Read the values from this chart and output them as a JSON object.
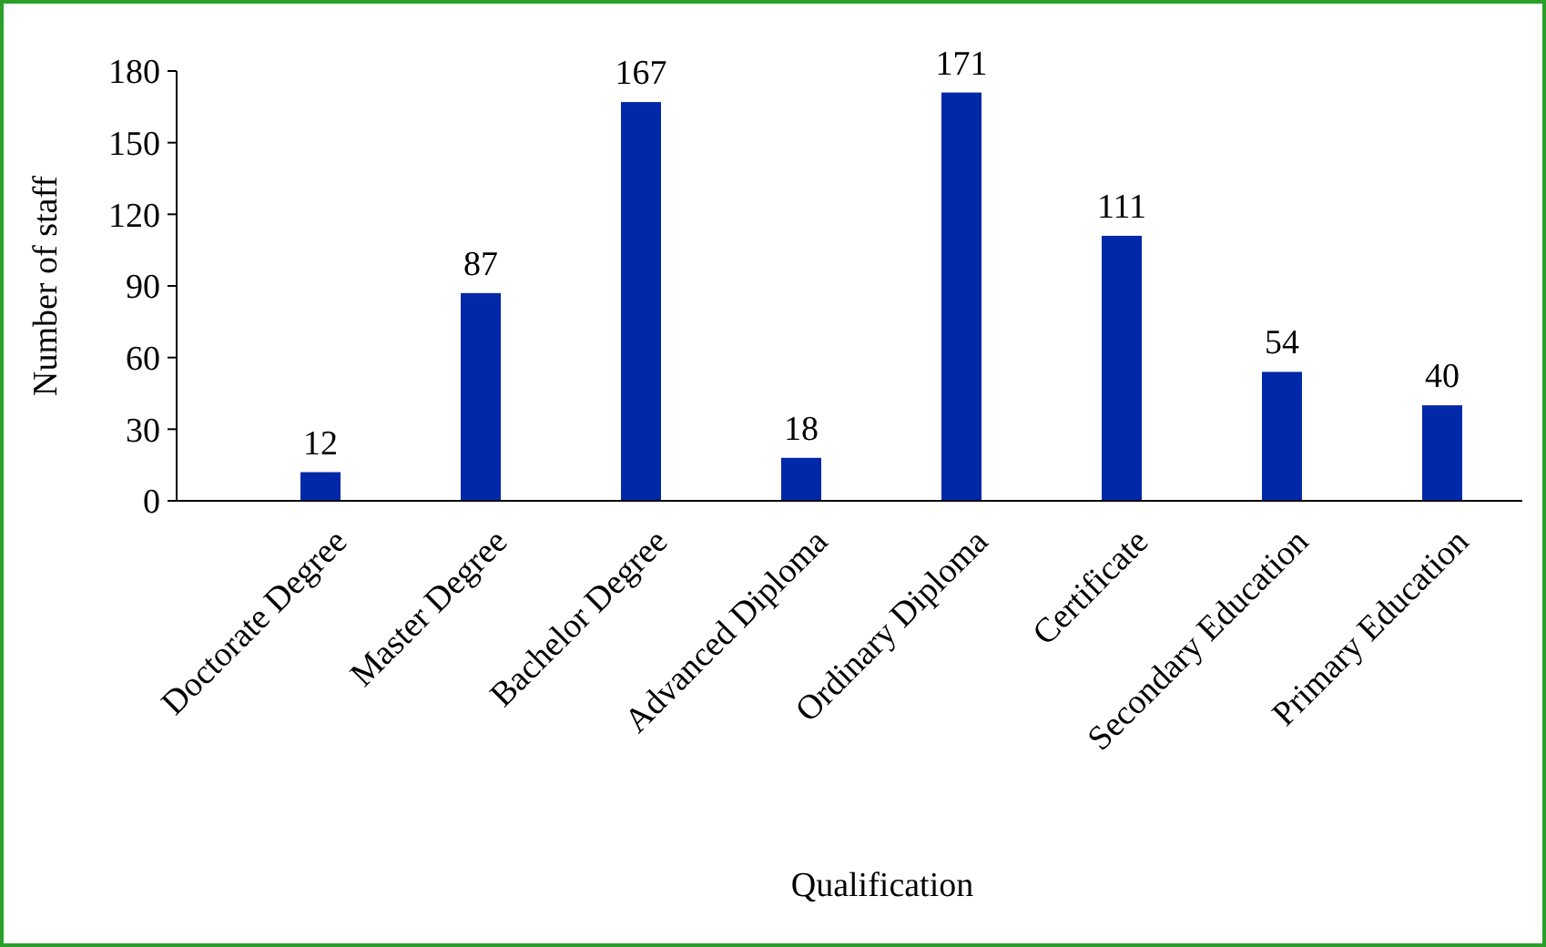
{
  "chart_data": {
    "type": "bar",
    "xlabel": "Qualification",
    "ylabel": "Number of staff",
    "categories": [
      "Doctorate Degree",
      "Master Degree",
      "Bachelor Degree",
      "Advanced Diploma",
      "Ordinary Diploma",
      "Certificate",
      "Secondary Education",
      "Primary Education"
    ],
    "values": [
      12,
      87,
      167,
      18,
      171,
      111,
      54,
      40
    ],
    "color": "#0028a8",
    "ylim": [
      0,
      180
    ],
    "yticks": [
      0,
      30,
      60,
      90,
      120,
      150,
      180
    ],
    "data_labels": true,
    "grid": false
  }
}
